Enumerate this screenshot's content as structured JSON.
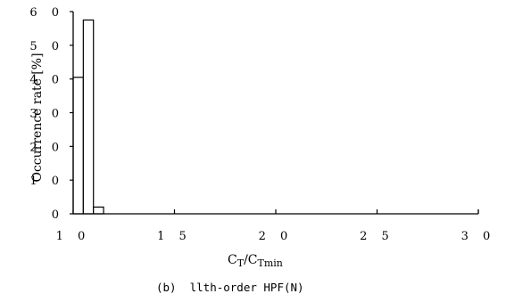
{
  "chart_data": {
    "type": "bar",
    "title": "",
    "caption": "(b)  llth-order HPF(N)",
    "xlabel": {
      "main": "C",
      "sub1": "T",
      "slash": "/C",
      "sub2": "Tmin"
    },
    "ylabel": "Occurrence rate [%]",
    "xlim": [
      10,
      30
    ],
    "ylim": [
      0,
      60
    ],
    "x_ticks": [
      10,
      15,
      20,
      25,
      30
    ],
    "x_tick_labels": [
      "1 0",
      "1 5",
      "2 0",
      "2 5",
      "3 0"
    ],
    "y_ticks": [
      0,
      10,
      20,
      30,
      40,
      50,
      60
    ],
    "y_tick_labels": [
      "0",
      "1 0",
      "2 0",
      "3 0",
      "4 0",
      "5 0",
      "6 0"
    ],
    "bin_width": 0.5,
    "bins": [
      {
        "x_start": 10.0,
        "value": 40.5
      },
      {
        "x_start": 10.5,
        "value": 57.5
      },
      {
        "x_start": 11.0,
        "value": 2.0
      },
      {
        "x_start": 11.5,
        "value": 0.0
      }
    ],
    "grid": false,
    "bar_fill": "#ffffff",
    "bar_stroke": "#000000"
  }
}
